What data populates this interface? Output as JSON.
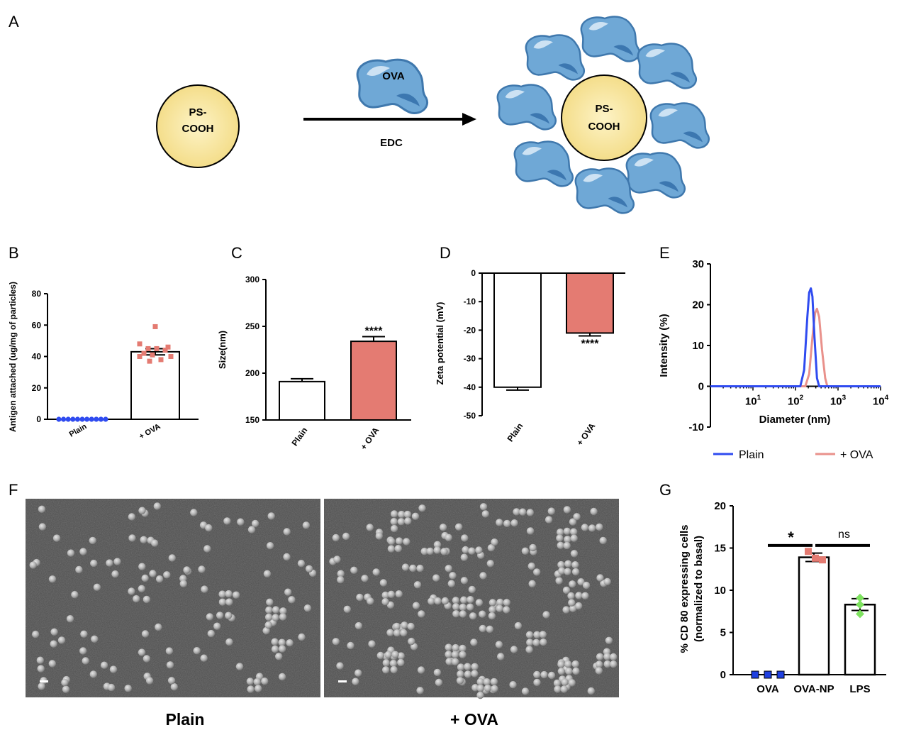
{
  "panel_labels": {
    "a": "A",
    "b": "B",
    "c": "C",
    "d": "D",
    "e": "E",
    "f": "F",
    "g": "G"
  },
  "schematic": {
    "particle_label_line1": "PS-",
    "particle_label_line2": "COOH",
    "protein_label": "OVA",
    "reagent_label": "EDC",
    "colors": {
      "particle": "#f6e4a0",
      "protein": "#6fa8d6",
      "arrow": "#000000"
    }
  },
  "chart_data": [
    {
      "panel": "B",
      "type": "bar",
      "categories": [
        "Plain",
        "+ OVA"
      ],
      "values": [
        0,
        43
      ],
      "errors": [
        0,
        2
      ],
      "ylabel": "Antigen attached (ug/mg of particles)",
      "ylim": [
        0,
        80
      ],
      "yticks": [
        "0",
        "20",
        "40",
        "60",
        "80"
      ],
      "points": {
        "Plain": [
          0,
          0,
          0,
          0,
          0,
          0,
          0,
          0,
          0,
          0,
          0
        ],
        "+ OVA": [
          59,
          48,
          46,
          45,
          44,
          42,
          41,
          40,
          40,
          38,
          37,
          45
        ]
      },
      "colors": {
        "Plain": "#2f4bf0",
        "+ OVA": "#e47b72"
      }
    },
    {
      "panel": "C",
      "type": "bar",
      "categories": [
        "Plain",
        "+ OVA"
      ],
      "values": [
        191,
        234
      ],
      "errors": [
        3,
        5
      ],
      "ylabel": "Size(nm)",
      "ylim": [
        150,
        300
      ],
      "yticks": [
        "150",
        "200",
        "250",
        "300"
      ],
      "annotation": "****",
      "colors": {
        "Plain": "#ffffff",
        "+ OVA": "#e47b72"
      }
    },
    {
      "panel": "D",
      "type": "bar",
      "categories": [
        "Plain",
        "+ OVA"
      ],
      "values": [
        -40,
        -21
      ],
      "errors": [
        1,
        1
      ],
      "ylabel": "Zeta potential (mV)",
      "ylim": [
        -50,
        0
      ],
      "yticks": [
        "0",
        "-10",
        "-20",
        "-30",
        "-40",
        "-50"
      ],
      "annotation": "****",
      "colors": {
        "Plain": "#ffffff",
        "+ OVA": "#e47b72"
      }
    },
    {
      "panel": "E",
      "type": "line",
      "xscale": "log",
      "xlabel": "Diameter (nm)",
      "ylabel": "Intensity (%)",
      "ylim": [
        -10,
        30
      ],
      "xlim": [
        1,
        10000
      ],
      "yticks": [
        "-10",
        "0",
        "10",
        "20",
        "30"
      ],
      "xtick_base": "10",
      "xtick_exponents": [
        "1",
        "2",
        "3",
        "4"
      ],
      "series": [
        {
          "name": "Plain",
          "color": "#2f4bf0",
          "x": [
            1,
            130,
            160,
            190,
            210,
            230,
            250,
            280,
            320,
            360,
            10000
          ],
          "y": [
            0,
            0,
            4,
            17,
            23,
            24,
            22,
            12,
            2,
            0,
            0
          ]
        },
        {
          "name": "+ OVA",
          "color": "#e9918b",
          "x": [
            1,
            170,
            210,
            250,
            290,
            320,
            360,
            420,
            500,
            560,
            10000
          ],
          "y": [
            0,
            0,
            3,
            12,
            18,
            19,
            17,
            9,
            2,
            0,
            0
          ]
        }
      ],
      "legend_position": "bottom"
    },
    {
      "panel": "G",
      "type": "bar",
      "categories": [
        "OVA",
        "OVA-NP",
        "LPS"
      ],
      "values": [
        0,
        13.9,
        8.3
      ],
      "errors": [
        0,
        0.5,
        0.7
      ],
      "ylabel_line1": "% CD 80 expressing cells",
      "ylabel_line2": "(normalized to basal)",
      "ylim": [
        0,
        20
      ],
      "yticks": [
        "0",
        "5",
        "10",
        "15",
        "20"
      ],
      "points": {
        "OVA": [
          0,
          0,
          0
        ],
        "OVA-NP": [
          14.6,
          13.6,
          13.8
        ],
        "LPS": [
          9.1,
          8.3,
          7.2
        ]
      },
      "colors": {
        "OVA": "#1f40e0",
        "OVA-NP": "#e47b72",
        "LPS": "#7ee25f"
      },
      "significance": [
        {
          "label": "*",
          "from": "OVA",
          "to": "OVA-NP"
        },
        {
          "label": "ns",
          "from": "OVA-NP",
          "to": "LPS"
        }
      ]
    }
  ],
  "micrographs": {
    "left_caption": "Plain",
    "right_caption": "+ OVA"
  }
}
